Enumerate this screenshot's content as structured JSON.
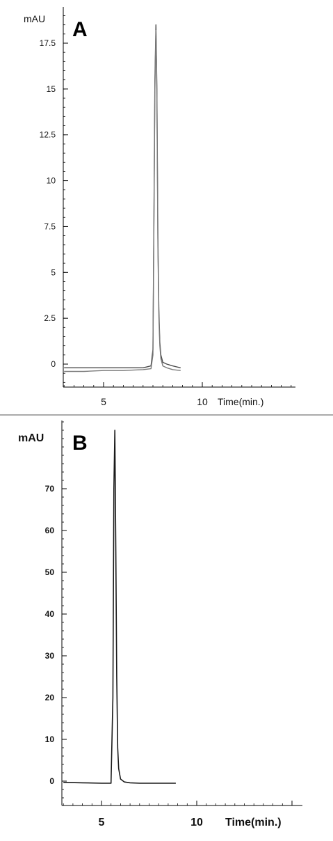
{
  "chart_data": [
    {
      "type": "line",
      "panel_label": "A",
      "ylabel": "mAU",
      "xlabel": "Time(min.)",
      "xlim": [
        3,
        15
      ],
      "ylim": [
        -1,
        19
      ],
      "yticks": [
        0,
        2.5,
        5,
        7.5,
        10,
        12.5,
        15,
        17.5
      ],
      "ytick_labels": [
        "0",
        "2.5",
        "5",
        "7.5",
        "10",
        "12.5",
        "15",
        "17.5"
      ],
      "xticks": [
        5,
        10
      ],
      "xtick_labels": [
        "5",
        "10"
      ],
      "series": [
        {
          "color": "#4a4a4a",
          "x": [
            3.0,
            4.0,
            5.0,
            6.0,
            7.0,
            7.4,
            7.5,
            7.55,
            7.6,
            7.65,
            7.7,
            7.75,
            7.8,
            7.85,
            7.9,
            8.0,
            8.2,
            8.5,
            8.9
          ],
          "y": [
            -0.2,
            -0.2,
            -0.2,
            -0.2,
            -0.2,
            -0.1,
            0.8,
            8.0,
            15.5,
            18.5,
            15.0,
            7.0,
            3.0,
            1.2,
            0.5,
            0.1,
            0.0,
            -0.1,
            -0.2
          ]
        },
        {
          "color": "#7a7a7a",
          "x": [
            3.0,
            4.0,
            5.0,
            6.0,
            7.0,
            7.4,
            7.5,
            7.55,
            7.6,
            7.65,
            7.7,
            7.75,
            7.8,
            7.85,
            7.9,
            8.0,
            8.2,
            8.5,
            8.9
          ],
          "y": [
            -0.4,
            -0.4,
            -0.35,
            -0.35,
            -0.3,
            -0.25,
            0.5,
            7.5,
            15.0,
            18.2,
            14.5,
            6.5,
            2.6,
            1.0,
            0.3,
            -0.1,
            -0.2,
            -0.3,
            -0.35
          ]
        }
      ]
    },
    {
      "type": "line",
      "panel_label": "B",
      "ylabel": "mAU",
      "xlabel": "Time(min.)",
      "xlim": [
        3,
        15
      ],
      "ylim": [
        -4,
        84
      ],
      "yticks": [
        0,
        10,
        20,
        30,
        40,
        50,
        60,
        70
      ],
      "ytick_labels": [
        "0",
        "10",
        "20",
        "30",
        "40",
        "50",
        "60",
        "70"
      ],
      "xticks": [
        5,
        10
      ],
      "xtick_labels": [
        "5",
        "10"
      ],
      "series": [
        {
          "color": "#1a1a1a",
          "x": [
            3.0,
            4.0,
            5.0,
            5.5,
            5.6,
            5.65,
            5.7,
            5.75,
            5.8,
            5.85,
            5.9,
            6.0,
            6.2,
            6.5,
            7.0,
            8.0,
            8.9
          ],
          "y": [
            -0.3,
            -0.4,
            -0.5,
            -0.5,
            20.0,
            70.0,
            84.0,
            55.0,
            25.0,
            8.0,
            3.0,
            0.5,
            -0.2,
            -0.4,
            -0.5,
            -0.5,
            -0.5
          ]
        }
      ]
    }
  ]
}
